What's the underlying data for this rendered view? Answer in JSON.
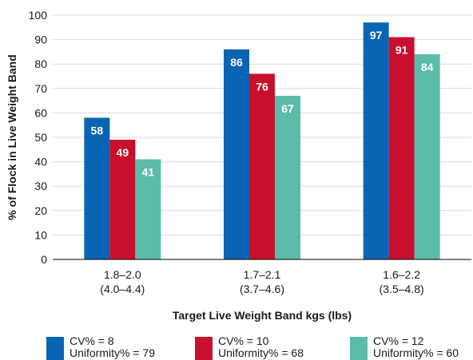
{
  "chart_data": {
    "type": "bar",
    "categories": [
      [
        "1.8–2.0",
        "(4.0–4.4)"
      ],
      [
        "1.7–2.1",
        "(3.7–4.6)"
      ],
      [
        "1.6–2.2",
        "(3.5–4.8)"
      ]
    ],
    "series": [
      {
        "name": [
          "CV% = 8",
          "Uniformity% = 79"
        ],
        "values": [
          58,
          86,
          97
        ],
        "color": "#0a64b4"
      },
      {
        "name": [
          "CV% = 10",
          "Uniformity% = 68"
        ],
        "values": [
          49,
          76,
          91
        ],
        "color": "#c8102e"
      },
      {
        "name": [
          "CV% = 12",
          "Uniformity% = 60"
        ],
        "values": [
          41,
          67,
          84
        ],
        "color": "#5bbcaa"
      }
    ],
    "xlabel": "Target Live Weight Band kgs (lbs)",
    "ylabel": "% of Flock in Live Weight Band",
    "ylim": [
      0,
      100
    ],
    "yticks": [
      0,
      10,
      20,
      30,
      40,
      50,
      60,
      70,
      80,
      90,
      100
    ],
    "grid": true,
    "legend_position": "bottom",
    "grid_color": "#d9d9d9",
    "axis_color": "#000000"
  }
}
